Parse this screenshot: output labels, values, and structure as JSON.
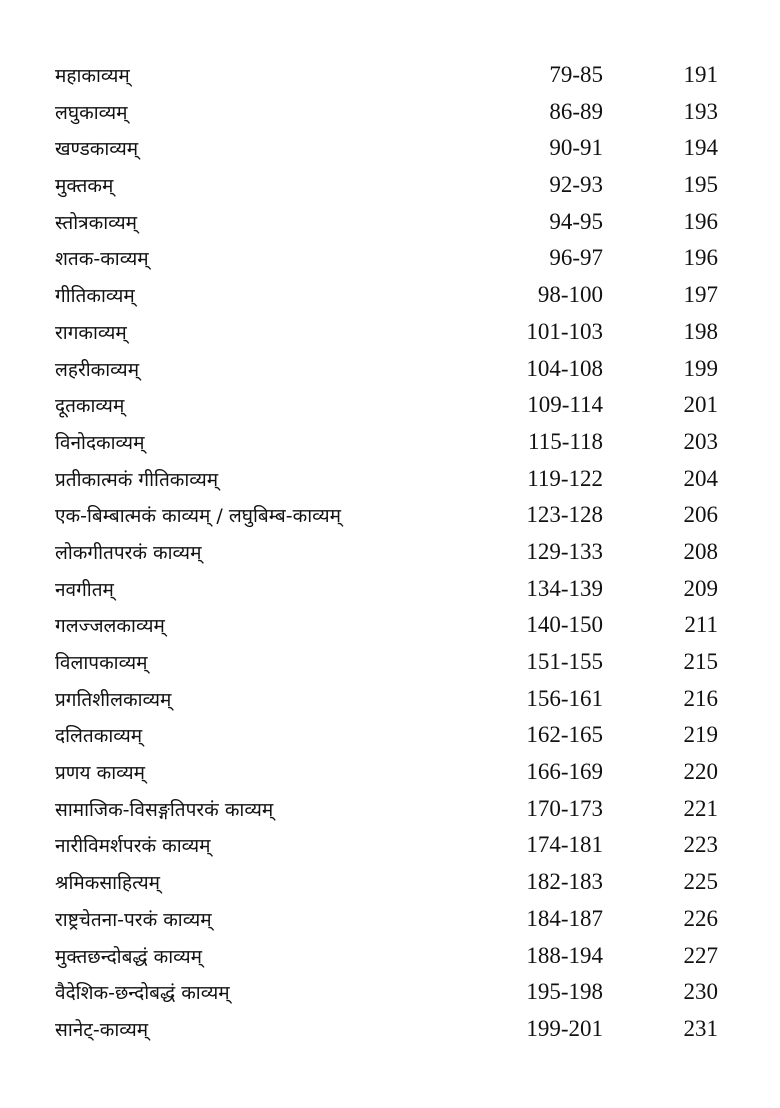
{
  "entries": [
    {
      "title": "महाकाव्यम्",
      "range": "79-85",
      "page": "191"
    },
    {
      "title": "लघुकाव्यम्",
      "range": "86-89",
      "page": "193"
    },
    {
      "title": "खण्डकाव्यम्",
      "range": "90-91",
      "page": "194"
    },
    {
      "title": "मुक्तकम्",
      "range": "92-93",
      "page": "195"
    },
    {
      "title": "स्तोत्रकाव्यम्",
      "range": "94-95",
      "page": "196"
    },
    {
      "title": "शतक-काव्यम्",
      "range": "96-97",
      "page": "196"
    },
    {
      "title": "गीतिकाव्यम्",
      "range": "98-100",
      "page": "197"
    },
    {
      "title": "रागकाव्यम्",
      "range": "101-103",
      "page": "198"
    },
    {
      "title": "लहरीकाव्यम्",
      "range": "104-108",
      "page": "199"
    },
    {
      "title": "दूतकाव्यम्",
      "range": "109-114",
      "page": "201"
    },
    {
      "title": "विनोदकाव्यम्",
      "range": "115-118",
      "page": "203"
    },
    {
      "title": "प्रतीकात्मकं गीतिकाव्यम्",
      "range": "119-122",
      "page": "204"
    },
    {
      "title": "एक-बिम्बात्मकं काव्यम् / लघुबिम्ब-काव्यम्",
      "range": "123-128",
      "page": "206"
    },
    {
      "title": "लोकगीतपरकं काव्यम्",
      "range": "129-133",
      "page": "208"
    },
    {
      "title": "नवगीतम्",
      "range": "134-139",
      "page": "209"
    },
    {
      "title": "गलज्जलकाव्यम्",
      "range": "140-150",
      "page": "211"
    },
    {
      "title": "विलापकाव्यम्",
      "range": "151-155",
      "page": "215"
    },
    {
      "title": "प्रगतिशीलकाव्यम्",
      "range": "156-161",
      "page": "216"
    },
    {
      "title": "दलितकाव्यम्",
      "range": "162-165",
      "page": "219"
    },
    {
      "title": "प्रणय काव्यम्",
      "range": "166-169",
      "page": "220"
    },
    {
      "title": "सामाजिक-विसङ्गतिपरकं काव्यम्",
      "range": "170-173",
      "page": "221"
    },
    {
      "title": "नारीविमर्शपरकं काव्यम्",
      "range": "174-181",
      "page": "223"
    },
    {
      "title": "श्रमिकसाहित्यम्",
      "range": "182-183",
      "page": "225"
    },
    {
      "title": "राष्ट्रचेतना-परकं काव्यम्",
      "range": "184-187",
      "page": "226"
    },
    {
      "title": "मुक्तछन्दोबद्धं काव्यम्",
      "range": "188-194",
      "page": "227"
    },
    {
      "title": "वैदेशिक-छन्दोबद्धं काव्यम्",
      "range": "195-198",
      "page": "230"
    },
    {
      "title": "सानेट्-काव्यम्",
      "range": "199-201",
      "page": "231"
    }
  ]
}
